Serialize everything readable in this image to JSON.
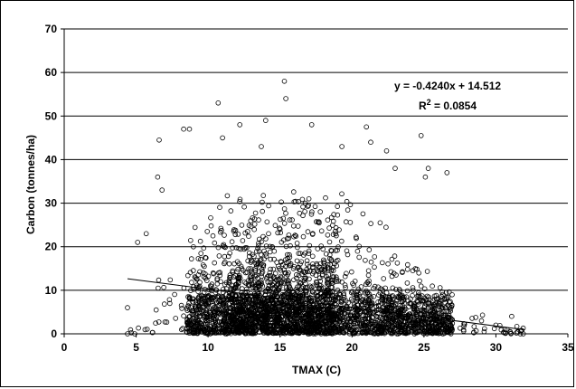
{
  "chart_data": {
    "type": "scatter",
    "title": "",
    "xlabel": "TMAX (C)",
    "ylabel": "Carbon (tonnes/ha)",
    "xlim": [
      0,
      35
    ],
    "ylim": [
      0,
      70
    ],
    "x_ticks": [
      "0",
      "5",
      "10",
      "15",
      "20",
      "25",
      "30",
      "35"
    ],
    "y_ticks": [
      "0",
      "10",
      "20",
      "30",
      "40",
      "50",
      "60",
      "70"
    ],
    "grid": "horizontal",
    "trendline": {
      "slope": -0.424,
      "intercept": 14.512,
      "equation_label": "y = -0.4240x + 14.512",
      "r2_label_prefix": "R",
      "r2_label_exp": "2",
      "r2_label_value": " = 0.0854"
    },
    "series": [
      {
        "marker": "open-circle",
        "color": "#000000",
        "notable_points": [
          {
            "x": 15.3,
            "y": 58
          },
          {
            "x": 15.4,
            "y": 54
          },
          {
            "x": 10.7,
            "y": 53
          },
          {
            "x": 14.0,
            "y": 49
          },
          {
            "x": 12.2,
            "y": 48
          },
          {
            "x": 17.2,
            "y": 48
          },
          {
            "x": 8.3,
            "y": 47
          },
          {
            "x": 8.7,
            "y": 47
          },
          {
            "x": 21.0,
            "y": 47.5
          },
          {
            "x": 24.8,
            "y": 45.5
          },
          {
            "x": 6.6,
            "y": 44.5
          },
          {
            "x": 11.0,
            "y": 45
          },
          {
            "x": 13.7,
            "y": 43
          },
          {
            "x": 19.3,
            "y": 43
          },
          {
            "x": 21.3,
            "y": 44
          },
          {
            "x": 22.4,
            "y": 42
          },
          {
            "x": 23.0,
            "y": 38
          },
          {
            "x": 25.3,
            "y": 38
          },
          {
            "x": 25.1,
            "y": 36
          },
          {
            "x": 26.6,
            "y": 37
          },
          {
            "x": 6.5,
            "y": 36
          },
          {
            "x": 6.8,
            "y": 33
          },
          {
            "x": 5.7,
            "y": 23
          },
          {
            "x": 5.1,
            "y": 21
          },
          {
            "x": 4.4,
            "y": 6
          },
          {
            "x": 4.4,
            "y": 0
          },
          {
            "x": 4.9,
            "y": 0
          },
          {
            "x": 29.0,
            "y": 3
          },
          {
            "x": 30.0,
            "y": 2
          },
          {
            "x": 31.1,
            "y": 4
          },
          {
            "x": 31.5,
            "y": 0.5
          },
          {
            "x": 31.9,
            "y": 0
          }
        ],
        "density_profile": {
          "x_range": [
            4.5,
            32
          ],
          "core_x_range": [
            8.5,
            27
          ],
          "typical_max_y": 30
        }
      }
    ]
  }
}
